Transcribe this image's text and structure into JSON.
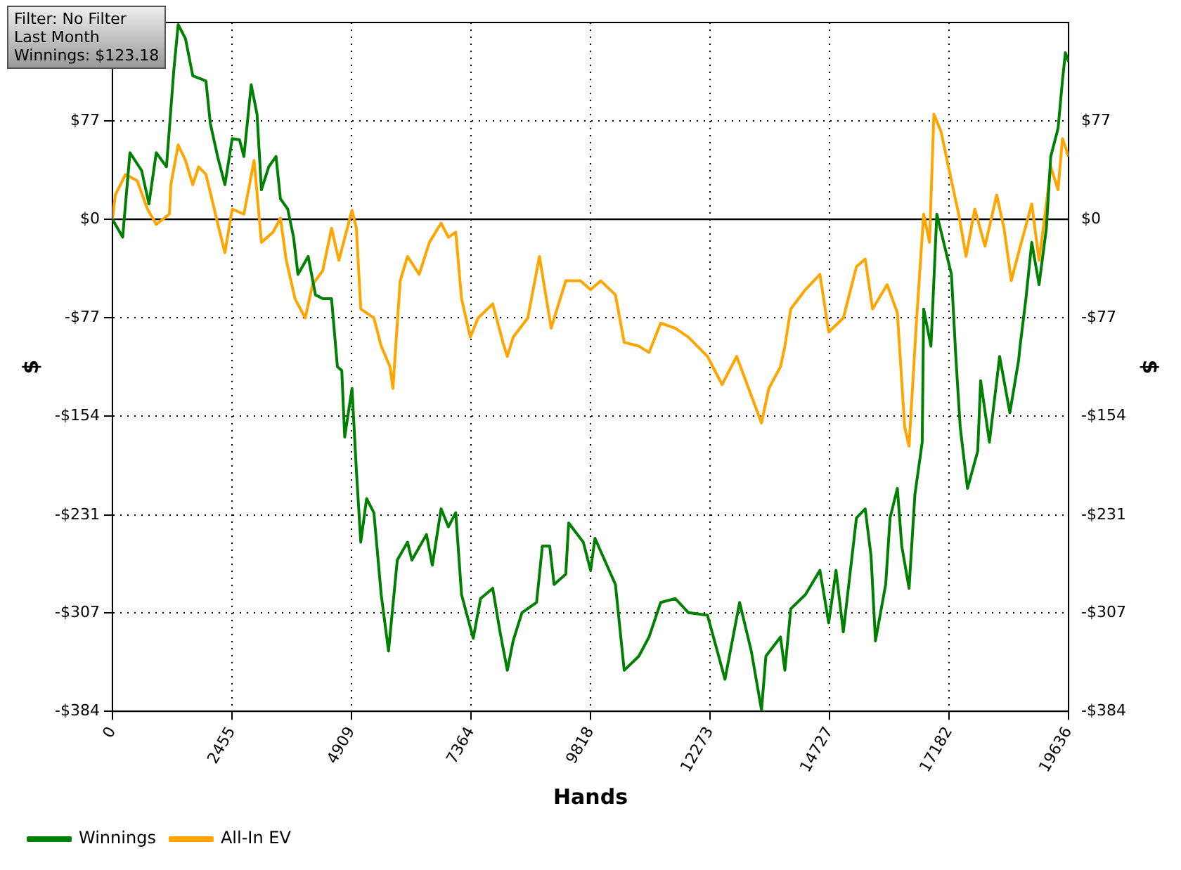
{
  "chart_data": {
    "type": "line",
    "xlabel": "Hands",
    "ylabel": "$",
    "y2label": "$",
    "annotations": [
      "Filter: No Filter",
      "Last Month",
      "Winnings: $123.18"
    ],
    "xlim": [
      0,
      19636
    ],
    "xticks": [
      0,
      {
        "value": 2454.5,
        "label": "2455"
      },
      4909,
      {
        "value": 7363.5,
        "label": "7364"
      },
      9818,
      {
        "value": 12272.5,
        "label": "12273"
      },
      14727,
      {
        "value": 17181.5,
        "label": "17182"
      },
      19636
    ],
    "ylim": [
      -384,
      153.6
    ],
    "yticks": [
      {
        "value": -384,
        "label": "-$384"
      },
      {
        "value": -307.2,
        "label": "-$307"
      },
      {
        "value": -231,
        "label": "-$231"
      },
      {
        "value": -153.6,
        "label": "-$154"
      },
      {
        "value": -76.8,
        "label": "-$77"
      },
      {
        "value": 0,
        "label": "$0"
      },
      {
        "value": 76.8,
        "label": "$77"
      }
    ],
    "y2lim": [
      -384,
      153.6
    ],
    "y2ticks": [
      {
        "value": -384,
        "label": "-$384"
      },
      {
        "value": -307.2,
        "label": "-$307"
      },
      {
        "value": -231,
        "label": "-$231"
      },
      {
        "value": -153.6,
        "label": "-$154"
      },
      {
        "value": -76.8,
        "label": "-$77"
      },
      {
        "value": 0,
        "label": "$0"
      },
      {
        "value": 76.8,
        "label": "$77"
      }
    ],
    "ref_lines": [
      {
        "axis": "y",
        "value": 0,
        "color": "#000000"
      }
    ],
    "grid": true,
    "legend": "bottom left",
    "marker": "none",
    "line_style": "solid",
    "series": [
      {
        "name": "Winnings",
        "color": "#008000",
        "x": [
          0,
          210,
          360,
          600,
          750,
          900,
          1110,
          1260,
          1350,
          1500,
          1650,
          1920,
          2010,
          2160,
          2310,
          2460,
          2610,
          2700,
          2850,
          2970,
          3060,
          3210,
          3360,
          3450,
          3600,
          3720,
          3810,
          4020,
          4170,
          4320,
          4500,
          4620,
          4710,
          4770,
          4920,
          5010,
          5100,
          5220,
          5370,
          5520,
          5670,
          5850,
          6060,
          6150,
          6450,
          6570,
          6750,
          6900,
          7050,
          7170,
          7410,
          7560,
          7810,
          7960,
          8110,
          8230,
          8410,
          8710,
          8830,
          8980,
          9070,
          9310,
          9370,
          9670,
          9820,
          9910,
          10330,
          10510,
          10810,
          11020,
          11260,
          11560,
          11830,
          12220,
          12580,
          12880,
          13120,
          13330,
          13420,
          13720,
          13810,
          13930,
          14230,
          14530,
          14710,
          14860,
          15010,
          15280,
          15460,
          15580,
          15670,
          15880,
          15970,
          16120,
          16210,
          16360,
          16480,
          16630,
          16660,
          16810,
          16930,
          17020,
          17230,
          17320,
          17410,
          17560,
          17770,
          17830,
          18010,
          18220,
          18430,
          18610,
          18640,
          18760,
          18880,
          19030,
          19180,
          19270,
          19420,
          19510,
          19570,
          19636
        ],
        "values": [
          0,
          -14,
          52,
          38,
          12,
          52,
          41,
          116,
          152,
          141,
          112,
          108,
          75,
          49,
          27,
          63,
          62,
          49,
          105,
          82,
          23,
          41,
          49,
          16,
          8,
          -14,
          -43,
          -29,
          -59,
          -62,
          -62,
          -115,
          -118,
          -170,
          -132,
          -196,
          -252,
          -218,
          -229,
          -293,
          -337,
          -266,
          -252,
          -266,
          -246,
          -270,
          -226,
          -240,
          -229,
          -293,
          -327,
          -296,
          -288,
          -322,
          -352,
          -329,
          -307,
          -299,
          -255,
          -255,
          -285,
          -277,
          -237,
          -252,
          -274,
          -249,
          -285,
          -352,
          -341,
          -326,
          -299,
          -296,
          -307,
          -309,
          -359,
          -299,
          -337,
          -383,
          -341,
          -326,
          -352,
          -304,
          -293,
          -274,
          -315,
          -274,
          -322,
          -233,
          -226,
          -263,
          -329,
          -285,
          -233,
          -210,
          -255,
          -288,
          -215,
          -174,
          -70,
          -99,
          4,
          -10,
          -43,
          -107,
          -162,
          -210,
          -181,
          -126,
          -174,
          -107,
          -151,
          -110,
          -99,
          -62,
          -18,
          -51,
          -7,
          49,
          71,
          108,
          130,
          123
        ]
      },
      {
        "name": "All-In EV",
        "color": "#ffa500",
        "x": [
          0,
          60,
          270,
          510,
          720,
          900,
          1170,
          1200,
          1350,
          1500,
          1650,
          1770,
          1920,
          2010,
          2160,
          2310,
          2460,
          2700,
          2910,
          3060,
          3300,
          3450,
          3570,
          3750,
          3960,
          4110,
          4320,
          4500,
          4650,
          4920,
          5010,
          5100,
          5370,
          5520,
          5700,
          5760,
          5910,
          6060,
          6300,
          6510,
          6750,
          6900,
          7050,
          7170,
          7350,
          7510,
          7810,
          8020,
          8110,
          8230,
          8530,
          8770,
          9010,
          9310,
          9610,
          9820,
          10030,
          10330,
          10510,
          10810,
          11020,
          11260,
          11560,
          11830,
          12220,
          12520,
          12820,
          13330,
          13480,
          13720,
          13810,
          13930,
          14230,
          14530,
          14710,
          15010,
          15280,
          15460,
          15610,
          15910,
          16120,
          16270,
          16360,
          16510,
          16660,
          16780,
          16870,
          17020,
          17230,
          17380,
          17530,
          17710,
          17920,
          18160,
          18310,
          18460,
          18610,
          18880,
          19030,
          19180,
          19270,
          19420,
          19510,
          19636
        ],
        "values": [
          0,
          19,
          35,
          30,
          8,
          -4,
          4,
          27,
          58,
          46,
          27,
          41,
          35,
          21,
          -3,
          -26,
          8,
          4,
          46,
          -18,
          -10,
          1,
          -32,
          -62,
          -77,
          -51,
          -40,
          -7,
          -32,
          7,
          -7,
          -70,
          -77,
          -99,
          -115,
          -132,
          -48,
          -29,
          -43,
          -18,
          -3,
          -14,
          -10,
          -62,
          -92,
          -77,
          -66,
          -96,
          -107,
          -92,
          -77,
          -29,
          -85,
          -48,
          -48,
          -55,
          -48,
          -59,
          -96,
          -99,
          -104,
          -81,
          -85,
          -92,
          -107,
          -129,
          -107,
          -159,
          -132,
          -115,
          -99,
          -70,
          -55,
          -43,
          -88,
          -77,
          -37,
          -31,
          -70,
          -51,
          -73,
          -162,
          -177,
          -81,
          4,
          -18,
          82,
          68,
          30,
          4,
          -29,
          8,
          -21,
          19,
          -7,
          -48,
          -26,
          12,
          -32,
          12,
          41,
          23,
          63,
          49
        ]
      }
    ]
  }
}
